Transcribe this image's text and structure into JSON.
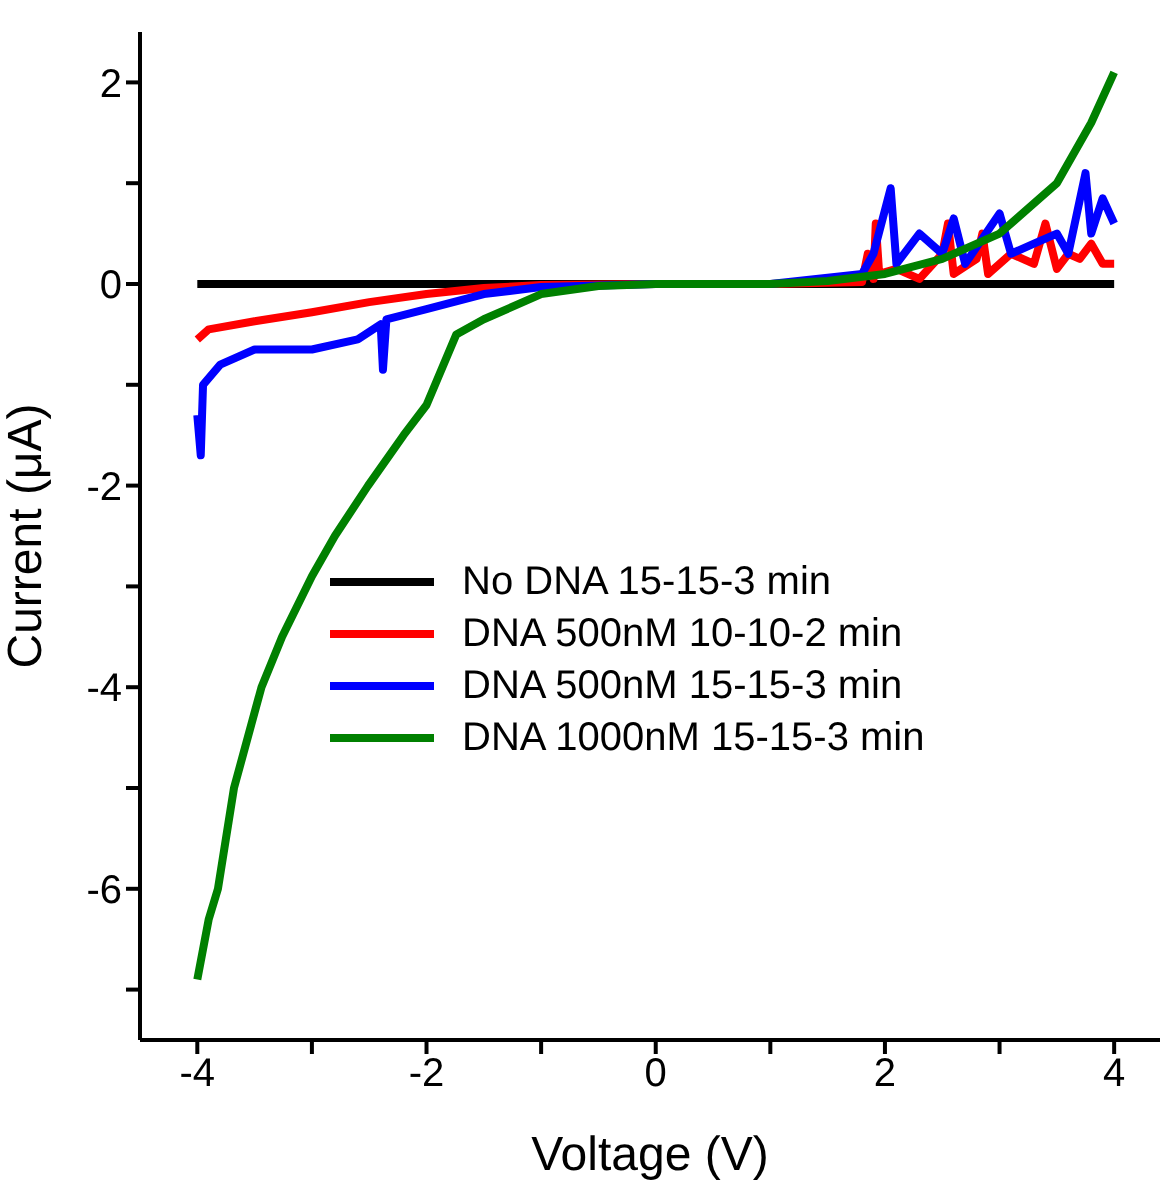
{
  "chart_data": {
    "type": "line",
    "xlabel": "Voltage (V)",
    "ylabel": "Current (μA)",
    "xlim": [
      -4.5,
      4.4
    ],
    "ylim": [
      -7.5,
      2.5
    ],
    "xticks": [
      -4,
      {
        "value": -3,
        "label": null
      },
      -2,
      {
        "value": -1,
        "label": null
      },
      0,
      {
        "value": 1,
        "label": null
      },
      2,
      {
        "value": 3,
        "label": null
      },
      4
    ],
    "yticks": [
      {
        "value": -7,
        "label": null
      },
      -6,
      {
        "value": -5,
        "label": null
      },
      -4,
      {
        "value": -3,
        "label": null
      },
      -2,
      {
        "value": -1,
        "label": null
      },
      0,
      {
        "value": 1,
        "label": null
      },
      2
    ],
    "grid": false,
    "legend": "right",
    "marker": "none",
    "line_style": "solid",
    "series": [
      {
        "name": "No DNA 15-15-3 min",
        "color": "#000000",
        "x": [
          -4,
          4
        ],
        "values": [
          0,
          0
        ]
      },
      {
        "name": "DNA 500nM 10-10-2 min",
        "color": "#ff0000",
        "x": [
          -4,
          -3.9,
          -3.5,
          -3,
          -2.5,
          -2,
          -1.5,
          -1,
          0,
          1,
          1.8,
          1.85,
          1.9,
          1.92,
          1.95,
          2.1,
          2.3,
          2.5,
          2.55,
          2.6,
          2.8,
          2.85,
          2.9,
          3.1,
          3.3,
          3.4,
          3.5,
          3.6,
          3.7,
          3.8,
          3.9,
          4
        ],
        "values": [
          -0.55,
          -0.45,
          -0.37,
          -0.28,
          -0.18,
          -0.1,
          -0.04,
          -0.01,
          0,
          0,
          0.02,
          0.3,
          0.05,
          0.6,
          0.1,
          0.15,
          0.05,
          0.3,
          0.6,
          0.1,
          0.25,
          0.5,
          0.1,
          0.3,
          0.2,
          0.6,
          0.15,
          0.3,
          0.25,
          0.4,
          0.2,
          0.2
        ]
      },
      {
        "name": "DNA 500nM 15-15-3 min",
        "color": "#0000ff",
        "x": [
          -4,
          -3.97,
          -3.95,
          -3.8,
          -3.5,
          -3,
          -2.6,
          -2.4,
          -2.38,
          -2.35,
          -2,
          -1.5,
          -1,
          0,
          1,
          1.8,
          1.9,
          2.05,
          2.1,
          2.3,
          2.5,
          2.6,
          2.7,
          3,
          3.1,
          3.3,
          3.5,
          3.6,
          3.75,
          3.8,
          3.9,
          4
        ],
        "values": [
          -1.3,
          -1.7,
          -1,
          -0.8,
          -0.65,
          -0.65,
          -0.55,
          -0.4,
          -0.85,
          -0.35,
          -0.25,
          -0.1,
          -0.03,
          0,
          0,
          0.1,
          0.3,
          0.95,
          0.2,
          0.5,
          0.3,
          0.65,
          0.2,
          0.7,
          0.3,
          0.4,
          0.5,
          0.3,
          1.1,
          0.5,
          0.85,
          0.6
        ]
      },
      {
        "name": "DNA 1000nM 15-15-3 min",
        "color": "#008000",
        "x": [
          -4,
          -3.95,
          -3.9,
          -3.82,
          -3.68,
          -3.44,
          -3.26,
          -3,
          -2.8,
          -2.51,
          -2.2,
          -2,
          -1.74,
          -1.5,
          -1,
          -0.5,
          0,
          1,
          1.5,
          2,
          2.5,
          3,
          3.5,
          3.8,
          4
        ],
        "values": [
          -6.9,
          -6.6,
          -6.3,
          -6,
          -5,
          -4,
          -3.5,
          -2.9,
          -2.5,
          -2,
          -1.5,
          -1.2,
          -0.5,
          -0.35,
          -0.1,
          -0.02,
          0,
          0,
          0.03,
          0.1,
          0.25,
          0.5,
          1,
          1.6,
          2.1
        ]
      }
    ]
  }
}
